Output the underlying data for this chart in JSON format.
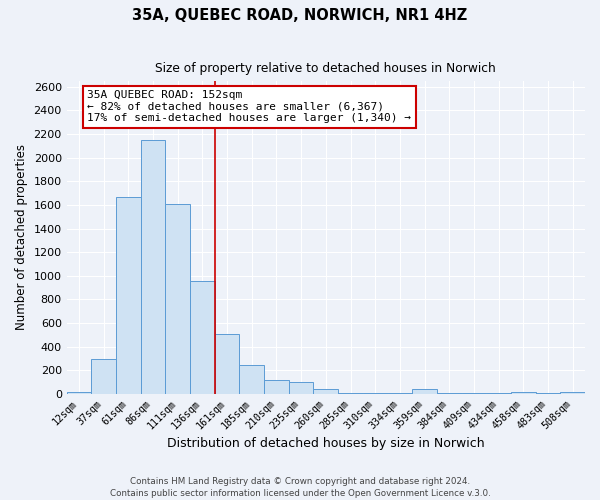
{
  "title": "35A, QUEBEC ROAD, NORWICH, NR1 4HZ",
  "subtitle": "Size of property relative to detached houses in Norwich",
  "xlabel": "Distribution of detached houses by size in Norwich",
  "ylabel": "Number of detached properties",
  "bin_labels": [
    "12sqm",
    "37sqm",
    "61sqm",
    "86sqm",
    "111sqm",
    "136sqm",
    "161sqm",
    "185sqm",
    "210sqm",
    "235sqm",
    "260sqm",
    "285sqm",
    "310sqm",
    "334sqm",
    "359sqm",
    "384sqm",
    "409sqm",
    "434sqm",
    "458sqm",
    "483sqm",
    "508sqm"
  ],
  "bin_values": [
    20,
    300,
    1670,
    2150,
    1610,
    960,
    505,
    250,
    120,
    100,
    40,
    10,
    10,
    5,
    40,
    5,
    5,
    5,
    20,
    5,
    20
  ],
  "bar_color": "#cfe2f3",
  "bar_edge_color": "#5b9bd5",
  "vline_x_idx": 5.5,
  "vline_color": "#cc0000",
  "annotation_title": "35A QUEBEC ROAD: 152sqm",
  "annotation_line1": "← 82% of detached houses are smaller (6,367)",
  "annotation_line2": "17% of semi-detached houses are larger (1,340) →",
  "annotation_box_color": "#ffffff",
  "annotation_box_edge": "#cc0000",
  "ylim": [
    0,
    2650
  ],
  "yticks": [
    0,
    200,
    400,
    600,
    800,
    1000,
    1200,
    1400,
    1600,
    1800,
    2000,
    2200,
    2400,
    2600
  ],
  "footer1": "Contains HM Land Registry data © Crown copyright and database right 2024.",
  "footer2": "Contains public sector information licensed under the Open Government Licence v.3.0.",
  "background_color": "#eef2f9",
  "grid_color": "#ffffff"
}
